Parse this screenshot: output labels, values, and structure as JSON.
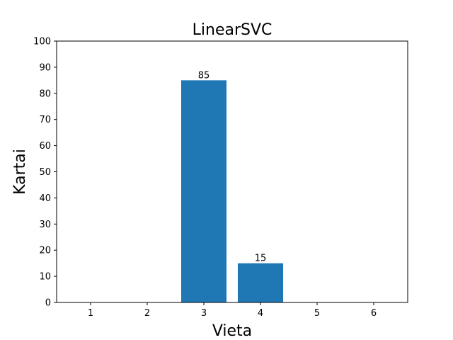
{
  "chart_data": {
    "type": "bar",
    "title": "LinearSVC",
    "xlabel": "Vieta",
    "ylabel": "Kartai",
    "categories": [
      "1",
      "2",
      "3",
      "4",
      "5",
      "6"
    ],
    "x": [
      1,
      2,
      3,
      4,
      5,
      6
    ],
    "values": [
      0,
      0,
      85,
      15,
      0,
      0
    ],
    "data_labels": [
      "",
      "",
      "85",
      "15",
      "",
      ""
    ],
    "ylim": [
      0,
      100
    ],
    "xlim": [
      0.4,
      6.6
    ],
    "yticks": [
      0,
      10,
      20,
      30,
      40,
      50,
      60,
      70,
      80,
      90,
      100
    ],
    "bar_width": 0.8,
    "bar_color": "#1f77b4",
    "grid": false,
    "legend": "none"
  }
}
